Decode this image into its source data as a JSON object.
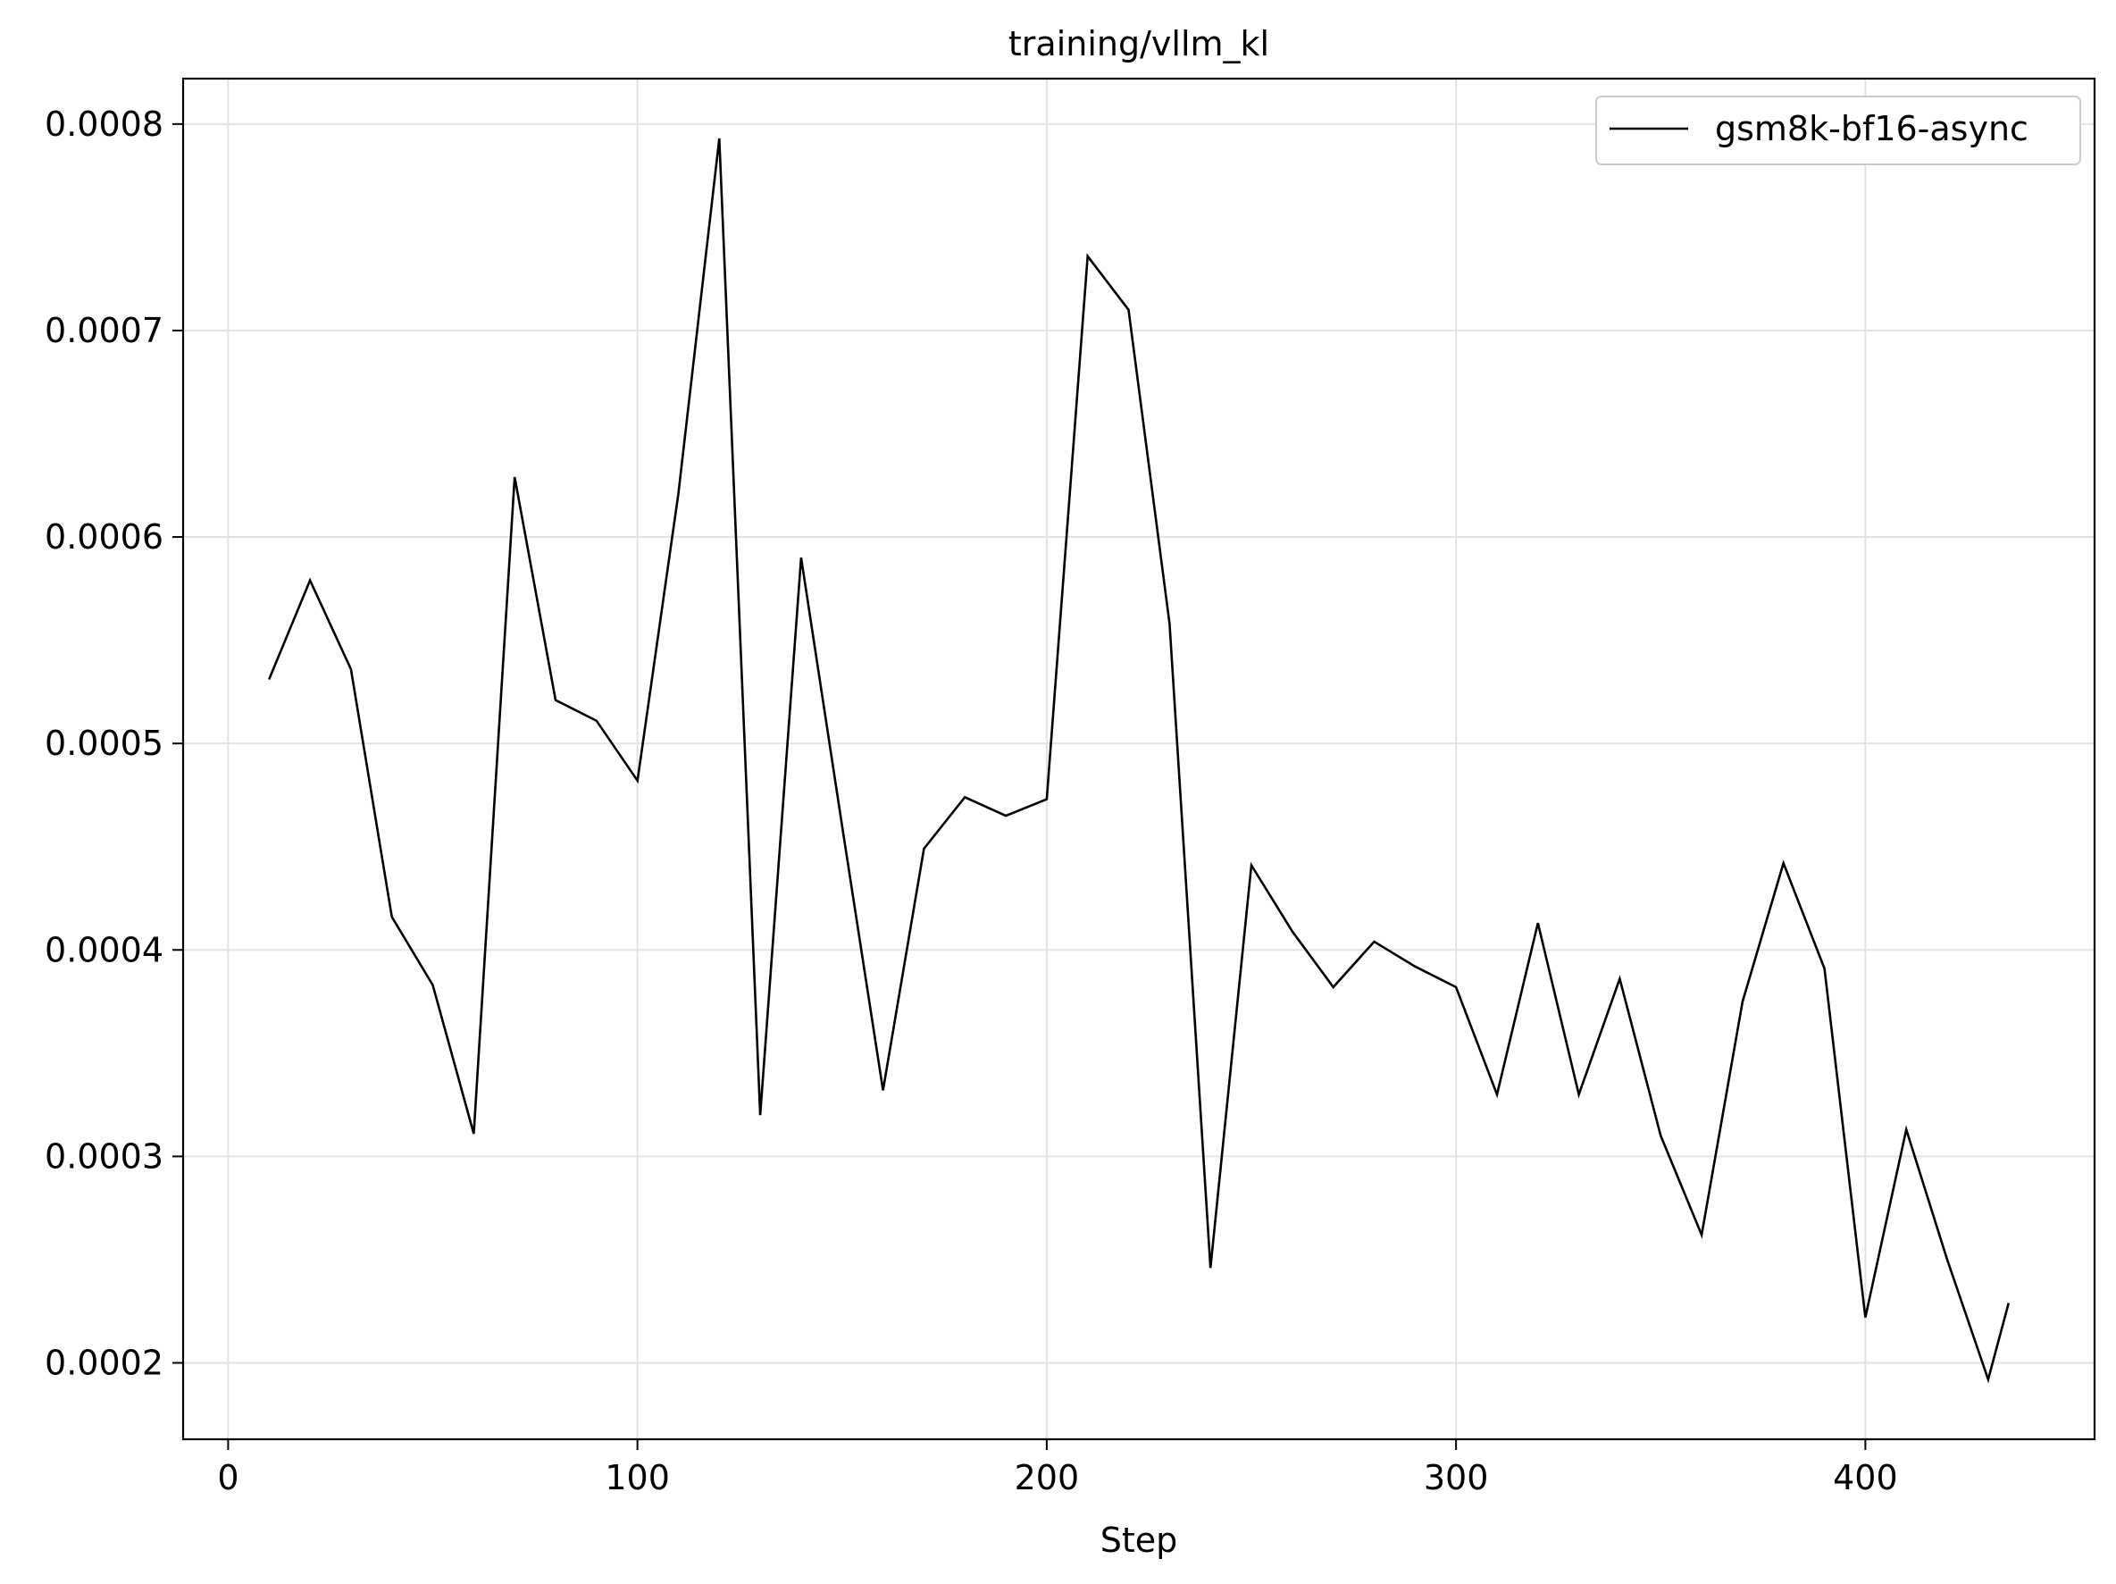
{
  "chart_data": {
    "type": "line",
    "title": "training/vllm_kl",
    "xlabel": "Step",
    "ylabel": "",
    "xlim": [
      -11,
      456
    ],
    "ylim": [
      0.000163,
      0.000822
    ],
    "xticks": [
      0,
      100,
      200,
      300,
      400
    ],
    "xtick_labels": [
      "0",
      "100",
      "200",
      "300",
      "400"
    ],
    "yticks": [
      0.0002,
      0.0003,
      0.0004,
      0.0005,
      0.0006,
      0.0007,
      0.0008
    ],
    "ytick_labels": [
      "0.0002",
      "0.0003",
      "0.0004",
      "0.0005",
      "0.0006",
      "0.0007",
      "0.0008"
    ],
    "grid": true,
    "legend_position": "top-right",
    "series": [
      {
        "name": "gsm8k-bf16-async",
        "color": "#000000",
        "x": [
          10,
          20,
          30,
          40,
          50,
          60,
          70,
          80,
          90,
          100,
          110,
          120,
          130,
          140,
          150,
          160,
          170,
          180,
          190,
          200,
          210,
          220,
          230,
          240,
          250,
          260,
          270,
          280,
          290,
          300,
          310,
          320,
          330,
          340,
          350,
          360,
          370,
          380,
          390,
          400,
          410,
          420,
          430,
          435
        ],
        "y": [
          0.000531,
          0.000579,
          0.000536,
          0.000416,
          0.000383,
          0.000311,
          0.000629,
          0.000521,
          0.000511,
          0.000482,
          0.000621,
          0.000793,
          0.00032,
          0.00059,
          0.00046,
          0.000332,
          0.000449,
          0.000474,
          0.000465,
          0.000473,
          0.000736,
          0.00071,
          0.000558,
          0.000246,
          0.000441,
          0.000409,
          0.000382,
          0.000404,
          0.000392,
          0.000382,
          0.00033,
          0.000413,
          0.00033,
          0.000386,
          0.00031,
          0.000262,
          0.000375,
          0.000442,
          0.000391,
          0.000222,
          0.000313,
          0.00025,
          0.000192,
          0.000229
        ]
      }
    ]
  }
}
